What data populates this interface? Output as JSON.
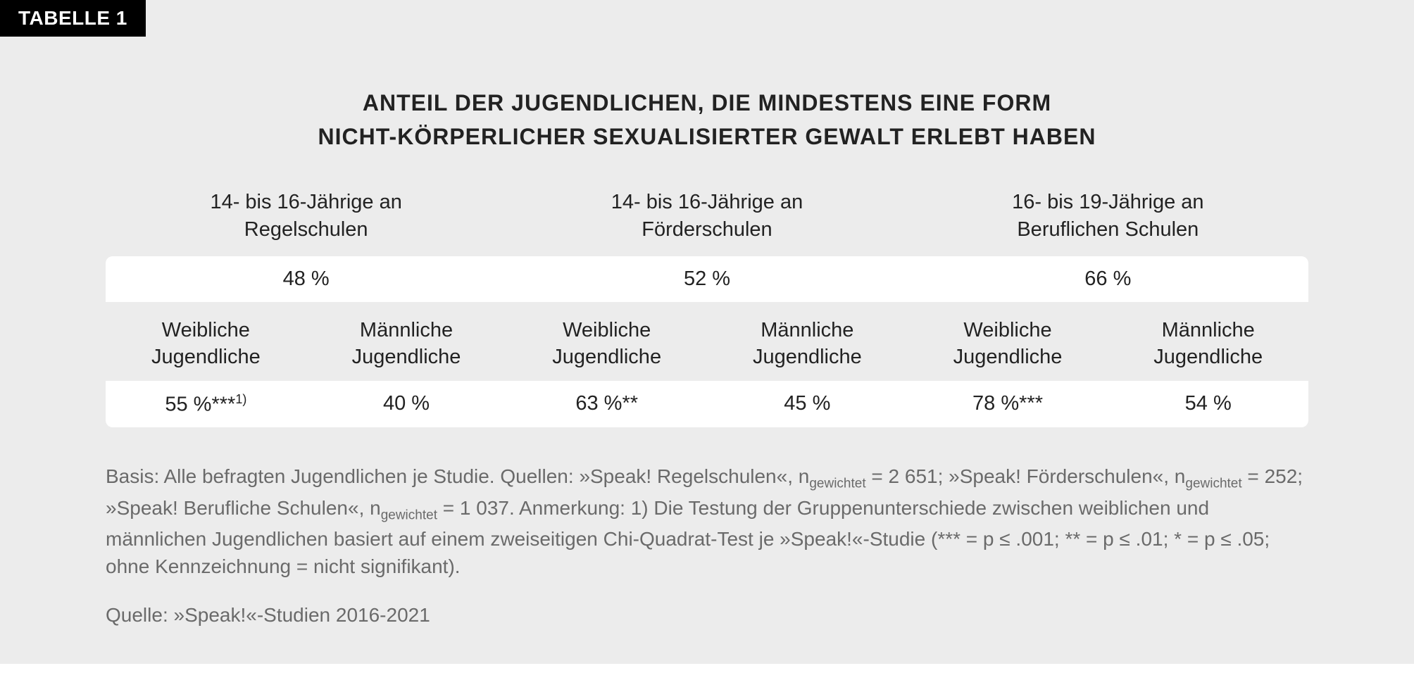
{
  "tab_label": "TABELLE 1",
  "title_line1": "ANTEIL DER JUGENDLICHEN, DIE MINDESTENS EINE FORM",
  "title_line2": "NICHT-KÖRPERLICHER SEXUALISIERTER GEWALT ERLEBT HABEN",
  "groups": [
    {
      "header_line1": "14- bis 16-Jährige an",
      "header_line2": "Regelschulen",
      "total": "48 %"
    },
    {
      "header_line1": "14- bis 16-Jährige an",
      "header_line2": "Förderschulen",
      "total": "52 %"
    },
    {
      "header_line1": "16- bis 19-Jährige an",
      "header_line2": "Beruflichen Schulen",
      "total": "66 %"
    }
  ],
  "sub_labels": {
    "female_line1": "Weibliche",
    "female_line2": "Jugendliche",
    "male_line1": "Männliche",
    "male_line2": "Jugendliche"
  },
  "values": {
    "g1_female_value": "55 %***",
    "g1_female_sup": "1)",
    "g1_male": "40 %",
    "g2_female": "63 %**",
    "g2_male": "45 %",
    "g3_female": "78 %***",
    "g3_male": "54 %"
  },
  "footnote": {
    "basis_prefix": "Basis: Alle befragten Jugendlichen je Studie. Quellen: »Speak! Regelschulen«, n",
    "sub1": "gewichtet",
    "part2": " = 2 651; »Speak! Förderschulen«, n",
    "sub2": "gewichtet",
    "part3": " = 252; »Speak! Berufliche Schulen«, n",
    "sub3": "gewichtet",
    "part4": " = 1 037. Anmerkung: 1) Die Testung der Gruppenunterschiede zwischen weiblichen und männlichen Jugendlichen basiert auf einem zweiseitigen Chi-Quadrat-Test je »Speak!«-Studie (*** = p ≤ .001; ** = p ≤ .01; * = p ≤ .05; ohne Kennzeichnung = nicht signifikant).",
    "source": "Quelle: »Speak!«-Studien 2016-2021"
  },
  "colors": {
    "background": "#ececec",
    "tab_bg": "#000000",
    "tab_text": "#ffffff",
    "text_primary": "#222222",
    "text_secondary": "#6a6a6a",
    "row_bg": "#ffffff"
  }
}
